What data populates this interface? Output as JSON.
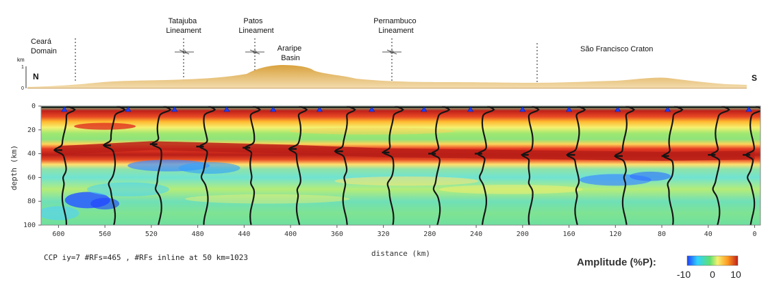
{
  "chart_data": {
    "type": "heatmap",
    "xlabel": "distance (km)",
    "ylabel": "depth (km)",
    "x_ticks": [
      600,
      560,
      520,
      480,
      440,
      400,
      360,
      320,
      280,
      240,
      200,
      160,
      120,
      80,
      40,
      0
    ],
    "y_ticks": [
      0,
      20,
      40,
      60,
      80,
      100
    ],
    "xlim": [
      615,
      -5
    ],
    "ylim": [
      0,
      100
    ],
    "info_text": "CCP iy=7 #RFs=465 , #RFs inline at 50 km=1023",
    "colorbar": {
      "title": "Amplitude (%P):",
      "tick_labels": [
        "-10",
        "0",
        "10"
      ],
      "min": -10,
      "max": 10,
      "colors": [
        "#1f3fff",
        "#2fd2ff",
        "#5fe070",
        "#f5f070",
        "#ff9a20",
        "#c0201a"
      ]
    },
    "moho": [
      {
        "x": 600,
        "depth": 37
      },
      {
        "x": 520,
        "depth": 33
      },
      {
        "x": 440,
        "depth": 35
      },
      {
        "x": 400,
        "depth": 36
      },
      {
        "x": 320,
        "depth": 39
      },
      {
        "x": 240,
        "depth": 40
      },
      {
        "x": 160,
        "depth": 41
      },
      {
        "x": 80,
        "depth": 42
      },
      {
        "x": 0,
        "depth": 41
      }
    ],
    "traces": [
      {
        "x": 595,
        "moho_depth": 37
      },
      {
        "x": 553,
        "moho_depth": 33
      },
      {
        "x": 513,
        "moho_depth": 32
      },
      {
        "x": 473,
        "moho_depth": 34
      },
      {
        "x": 433,
        "moho_depth": 35
      },
      {
        "x": 393,
        "moho_depth": 36
      },
      {
        "x": 353,
        "moho_depth": 38
      },
      {
        "x": 313,
        "moho_depth": 39
      },
      {
        "x": 273,
        "moho_depth": 40
      },
      {
        "x": 233,
        "moho_depth": 40
      },
      {
        "x": 193,
        "moho_depth": 41
      },
      {
        "x": 153,
        "moho_depth": 41
      },
      {
        "x": 112,
        "moho_depth": 42
      },
      {
        "x": 72,
        "moho_depth": 42
      },
      {
        "x": 32,
        "moho_depth": 41
      },
      {
        "x": 2,
        "moho_depth": 41
      }
    ],
    "stations": [
      595,
      540,
      500,
      455,
      415,
      375,
      330,
      285,
      245,
      200,
      160,
      118,
      75,
      5
    ]
  },
  "profile": {
    "elevation_unit": "km",
    "elevation_ticks": [
      "1",
      "0"
    ],
    "north": "N",
    "south": "S"
  },
  "annotations": [
    {
      "lines": [
        "Ceará",
        "Domain"
      ]
    },
    {
      "lines": [
        "Tatajuba",
        "Lineament"
      ]
    },
    {
      "lines": [
        "Patos",
        "Lineament"
      ]
    },
    {
      "lines": [
        "Araripe",
        "Basin"
      ]
    },
    {
      "lines": [
        "Pernambuco",
        "Lineament"
      ]
    },
    {
      "lines": [
        "São Francisco Craton"
      ]
    }
  ]
}
